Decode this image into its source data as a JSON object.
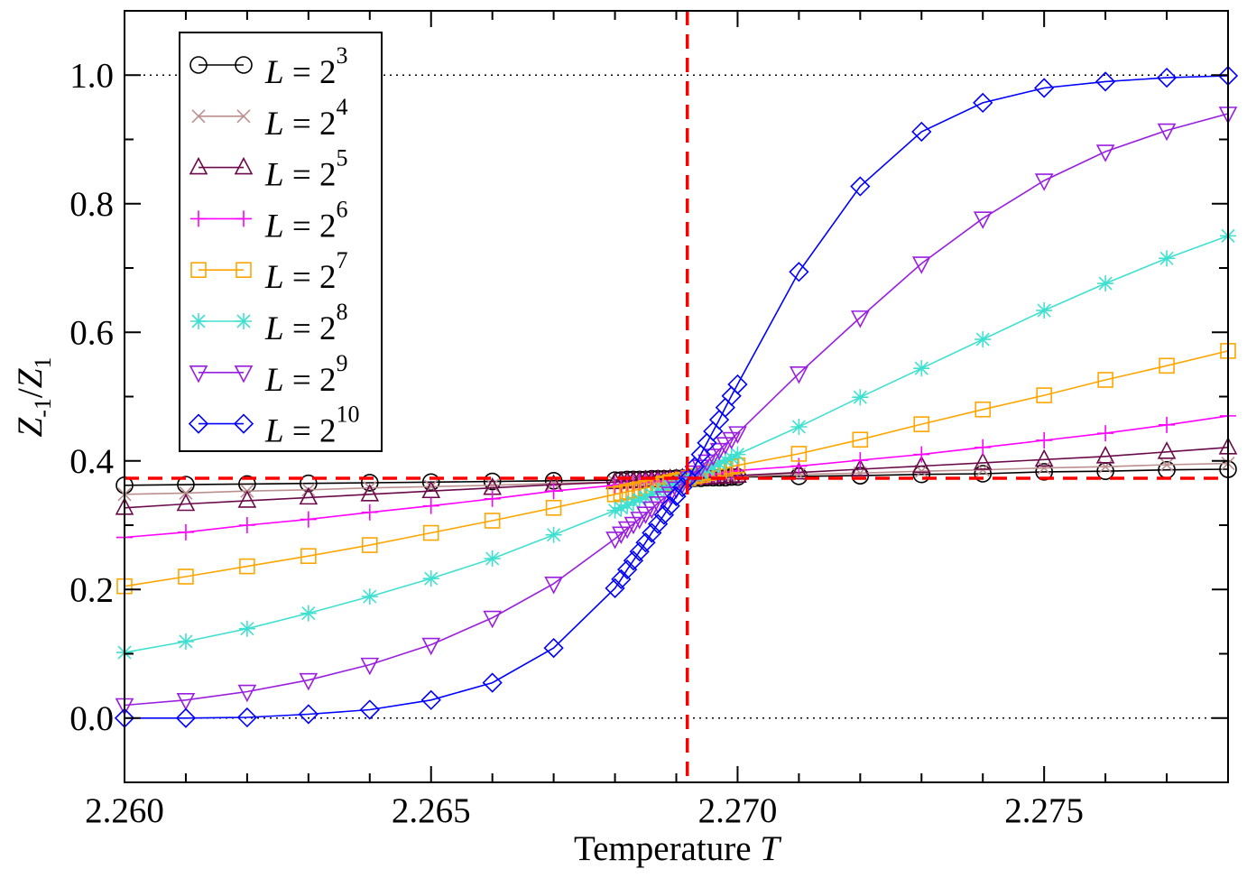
{
  "chart_data": {
    "type": "line",
    "title": "",
    "xlabel": "Temperature",
    "xlabel_var": "T",
    "ylabel": "Z_-1/Z_1",
    "ylabel_parts": {
      "a": "Z",
      "a_sub": "-1",
      "slash": "/",
      "b": "Z",
      "b_sub": "1"
    },
    "xlim": [
      2.26,
      2.278
    ],
    "ylim": [
      -0.1,
      1.1
    ],
    "x_major_ticks": [
      2.26,
      2.265,
      2.27,
      2.275
    ],
    "x_tick_labels": [
      "2.260",
      "2.265",
      "2.270",
      "2.275"
    ],
    "x_minor_step": 0.001,
    "y_major_ticks": [
      0.0,
      0.2,
      0.4,
      0.6,
      0.8,
      1.0
    ],
    "y_tick_labels": [
      "0.0",
      "0.2",
      "0.4",
      "0.6",
      "0.8",
      "1.0"
    ],
    "y_minor_step": 0.1,
    "grid": false,
    "legend_position": "top-left",
    "reference_lines": {
      "dotted_horizontal": [
        0.0,
        1.0
      ],
      "critical_T": 2.26918,
      "crossing_value": 0.373,
      "color": "#ff0000"
    },
    "x": [
      2.26,
      2.261,
      2.262,
      2.263,
      2.264,
      2.265,
      2.266,
      2.267,
      2.268,
      2.2681,
      2.2682,
      2.2683,
      2.2684,
      2.2685,
      2.2686,
      2.2687,
      2.2688,
      2.2689,
      2.269,
      2.2691,
      2.2692,
      2.2693,
      2.2694,
      2.2695,
      2.2696,
      2.2697,
      2.2698,
      2.2699,
      2.27,
      2.271,
      2.272,
      2.273,
      2.274,
      2.275,
      2.276,
      2.277,
      2.278
    ],
    "series": [
      {
        "name": "L = 2^3",
        "base": "2",
        "exp": "3",
        "color": "#000000",
        "marker": "circle",
        "values": [
          0.362,
          0.363,
          0.364,
          0.365,
          0.366,
          0.367,
          0.368,
          0.369,
          0.37,
          0.37,
          0.371,
          0.371,
          0.371,
          0.371,
          0.372,
          0.372,
          0.372,
          0.372,
          0.373,
          0.373,
          0.373,
          0.373,
          0.373,
          0.374,
          0.374,
          0.374,
          0.374,
          0.375,
          0.375,
          0.376,
          0.377,
          0.379,
          0.38,
          0.383,
          0.384,
          0.386,
          0.387
        ]
      },
      {
        "name": "L = 2^4",
        "base": "2",
        "exp": "4",
        "color": "#bc8f8f",
        "marker": "x",
        "values": [
          0.348,
          0.35,
          0.353,
          0.355,
          0.358,
          0.36,
          0.362,
          0.365,
          0.367,
          0.368,
          0.368,
          0.369,
          0.369,
          0.37,
          0.37,
          0.371,
          0.371,
          0.372,
          0.372,
          0.373,
          0.373,
          0.373,
          0.374,
          0.374,
          0.374,
          0.375,
          0.375,
          0.375,
          0.376,
          0.379,
          0.381,
          0.384,
          0.386,
          0.389,
          0.391,
          0.394,
          0.396
        ]
      },
      {
        "name": "L = 2^5",
        "base": "2",
        "exp": "5",
        "color": "#6b0a4a",
        "marker": "triangle-up",
        "values": [
          0.327,
          0.333,
          0.338,
          0.343,
          0.348,
          0.353,
          0.358,
          0.363,
          0.367,
          0.368,
          0.368,
          0.369,
          0.369,
          0.37,
          0.37,
          0.371,
          0.371,
          0.372,
          0.372,
          0.373,
          0.373,
          0.373,
          0.374,
          0.374,
          0.375,
          0.375,
          0.376,
          0.376,
          0.377,
          0.382,
          0.387,
          0.392,
          0.397,
          0.402,
          0.407,
          0.414,
          0.421
        ]
      },
      {
        "name": "L = 2^6",
        "base": "2",
        "exp": "6",
        "color": "#ff00ff",
        "marker": "plus",
        "values": [
          0.281,
          0.289,
          0.3,
          0.309,
          0.32,
          0.33,
          0.341,
          0.353,
          0.362,
          0.363,
          0.364,
          0.365,
          0.366,
          0.367,
          0.368,
          0.368,
          0.369,
          0.37,
          0.371,
          0.372,
          0.373,
          0.374,
          0.376,
          0.377,
          0.379,
          0.38,
          0.382,
          0.383,
          0.385,
          0.392,
          0.401,
          0.41,
          0.421,
          0.432,
          0.443,
          0.456,
          0.47
        ]
      },
      {
        "name": "L = 2^7",
        "base": "2",
        "exp": "7",
        "color": "#ffa500",
        "marker": "square",
        "values": [
          0.205,
          0.22,
          0.236,
          0.252,
          0.269,
          0.288,
          0.307,
          0.327,
          0.348,
          0.35,
          0.352,
          0.354,
          0.356,
          0.358,
          0.36,
          0.363,
          0.365,
          0.367,
          0.369,
          0.371,
          0.373,
          0.376,
          0.378,
          0.381,
          0.383,
          0.386,
          0.388,
          0.391,
          0.393,
          0.411,
          0.433,
          0.457,
          0.48,
          0.502,
          0.526,
          0.548,
          0.571
        ]
      },
      {
        "name": "L = 2^8",
        "base": "2",
        "exp": "8",
        "color": "#40e0d0",
        "marker": "asterisk",
        "values": [
          0.102,
          0.119,
          0.139,
          0.163,
          0.189,
          0.217,
          0.248,
          0.285,
          0.323,
          0.327,
          0.331,
          0.336,
          0.34,
          0.344,
          0.348,
          0.352,
          0.356,
          0.361,
          0.365,
          0.369,
          0.373,
          0.378,
          0.382,
          0.387,
          0.391,
          0.396,
          0.401,
          0.405,
          0.41,
          0.453,
          0.499,
          0.544,
          0.589,
          0.634,
          0.676,
          0.715,
          0.75
        ]
      },
      {
        "name": "L = 2^9",
        "base": "2",
        "exp": "9",
        "color": "#9a1ee0",
        "marker": "triangle-down",
        "values": [
          0.02,
          0.028,
          0.041,
          0.059,
          0.083,
          0.114,
          0.156,
          0.209,
          0.279,
          0.287,
          0.295,
          0.302,
          0.31,
          0.318,
          0.326,
          0.334,
          0.342,
          0.349,
          0.357,
          0.365,
          0.373,
          0.382,
          0.391,
          0.399,
          0.408,
          0.417,
          0.426,
          0.434,
          0.443,
          0.536,
          0.623,
          0.707,
          0.777,
          0.836,
          0.881,
          0.914,
          0.94
        ]
      },
      {
        "name": "L = 2^10",
        "base": "2",
        "exp": "10",
        "color": "#0000ff",
        "marker": "diamond",
        "values": [
          0.0,
          0.0,
          0.001,
          0.006,
          0.013,
          0.028,
          0.055,
          0.109,
          0.202,
          0.216,
          0.231,
          0.245,
          0.259,
          0.273,
          0.288,
          0.302,
          0.316,
          0.33,
          0.345,
          0.359,
          0.373,
          0.391,
          0.41,
          0.428,
          0.446,
          0.464,
          0.483,
          0.501,
          0.519,
          0.694,
          0.827,
          0.912,
          0.957,
          0.98,
          0.99,
          0.996,
          0.999
        ]
      }
    ]
  }
}
